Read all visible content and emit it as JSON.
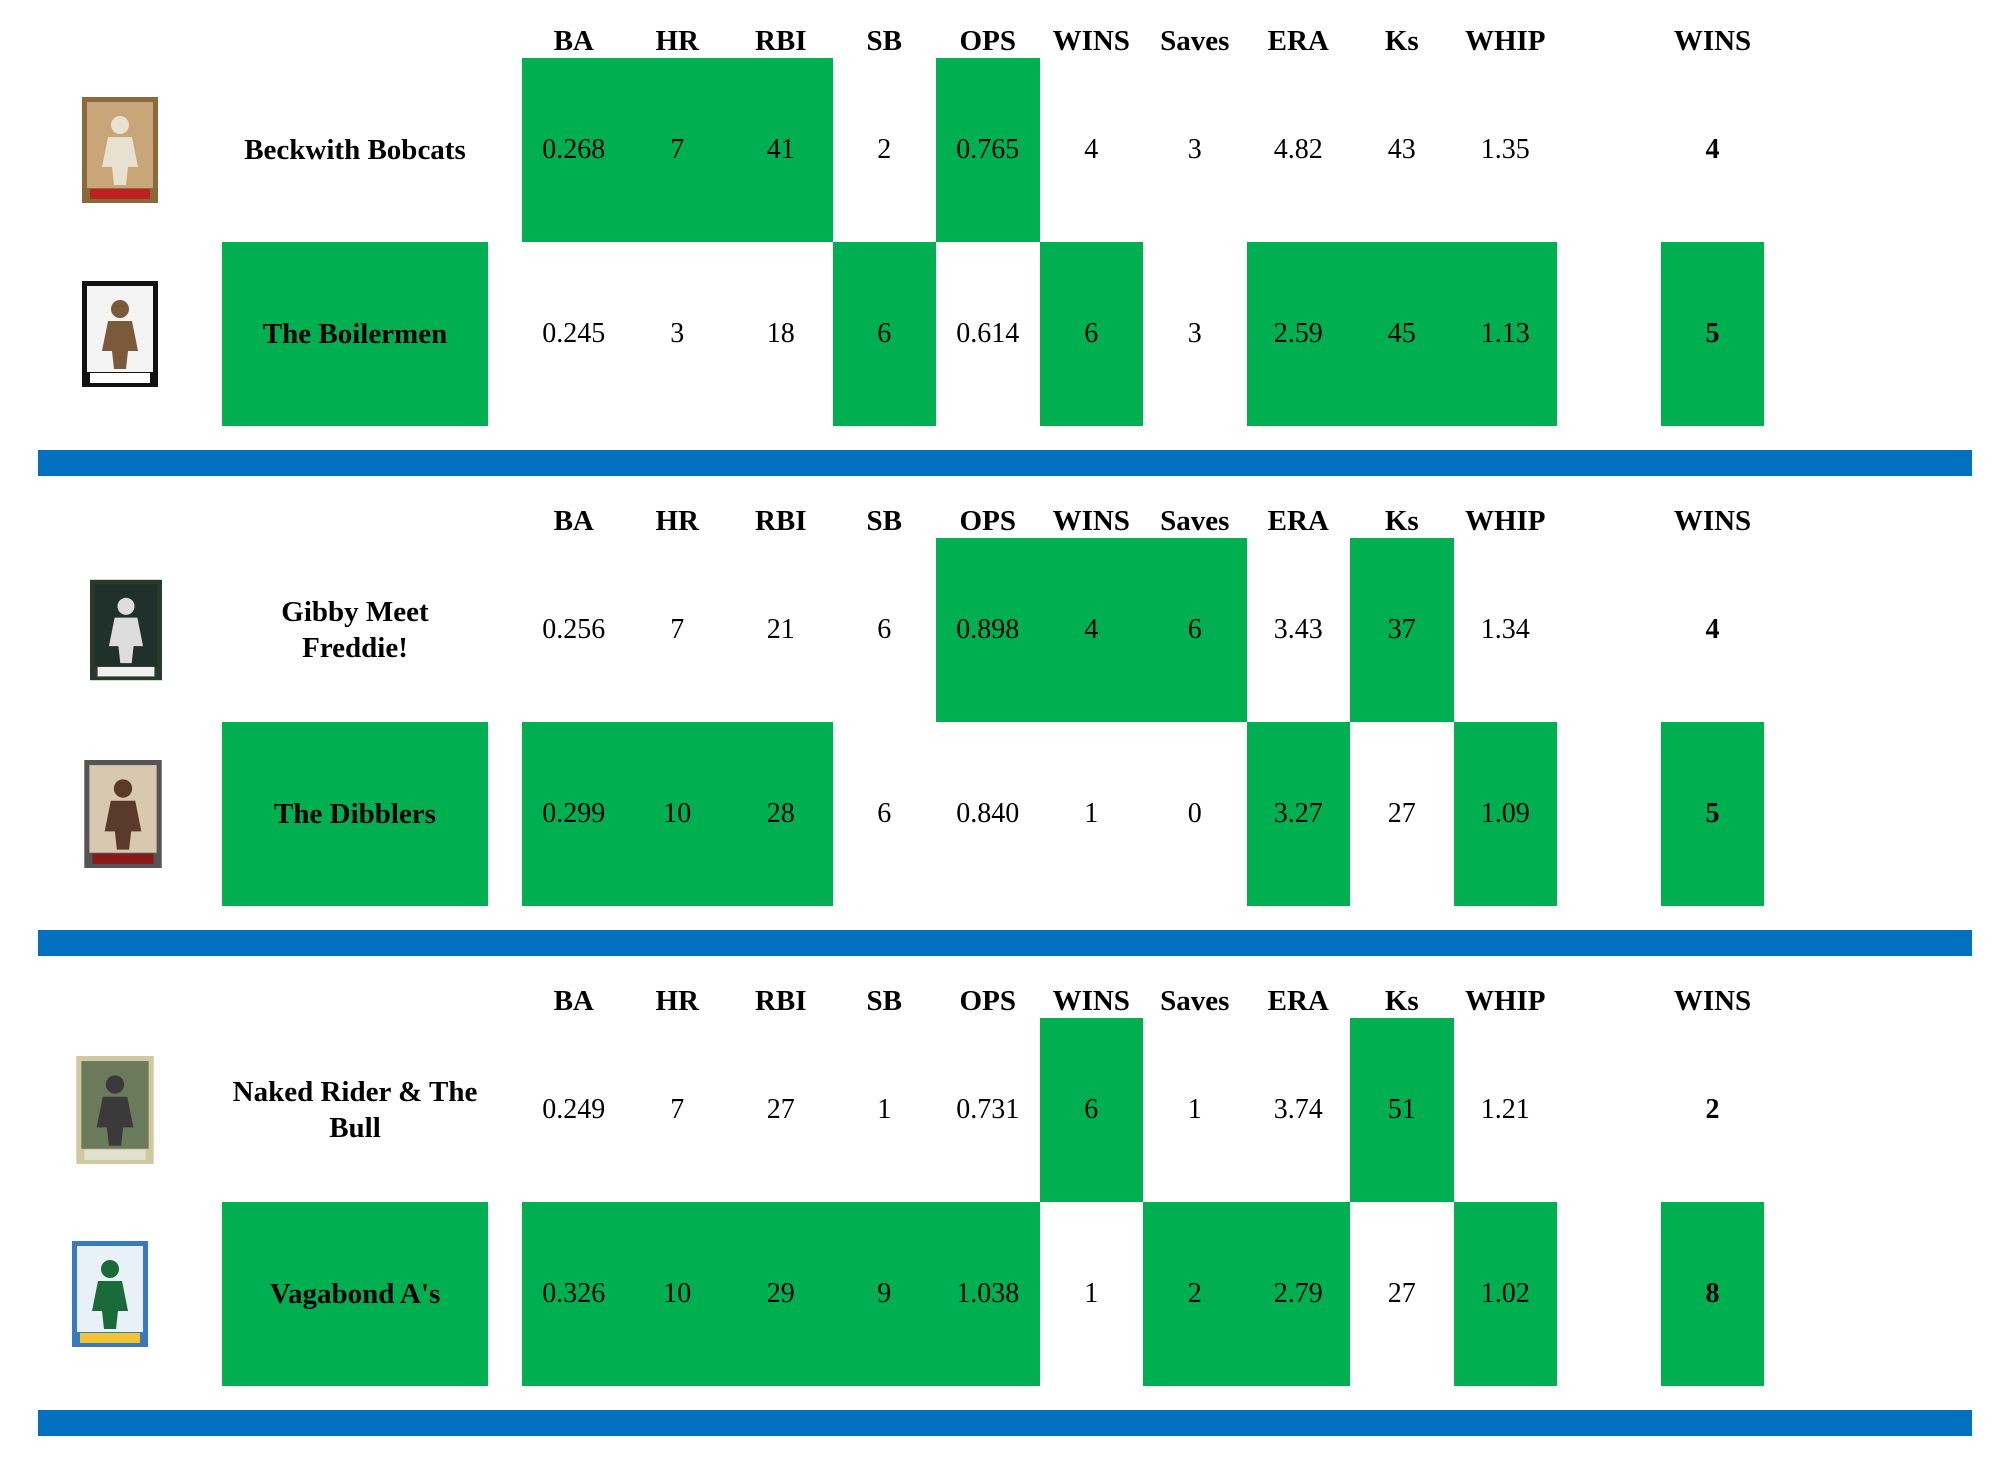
{
  "columns": [
    "BA",
    "HR",
    "RBI",
    "SB",
    "OPS",
    "WINS",
    "Saves",
    "ERA",
    "Ks",
    "WHIP"
  ],
  "total_header": "WINS",
  "colors": {
    "win_highlight": "#00b050",
    "divider": "#0070c0"
  },
  "matchups": [
    {
      "teams": [
        {
          "name": "Beckwith Bobcats",
          "card_icon": "baseball-card-pitcher-icon",
          "stats": [
            "0.268",
            "7",
            "41",
            "2",
            "0.765",
            "4",
            "3",
            "4.82",
            "43",
            "1.35"
          ],
          "highlight": [
            true,
            true,
            true,
            false,
            true,
            false,
            false,
            false,
            false,
            false
          ],
          "total": "4",
          "team_highlight": false,
          "total_highlight": false
        },
        {
          "name": "The Boilermen",
          "card_icon": "baseball-card-portrait-icon",
          "stats": [
            "0.245",
            "3",
            "18",
            "6",
            "0.614",
            "6",
            "3",
            "2.59",
            "45",
            "1.13"
          ],
          "highlight": [
            false,
            false,
            false,
            true,
            false,
            true,
            false,
            true,
            true,
            true
          ],
          "total": "5",
          "team_highlight": true,
          "total_highlight": true
        }
      ]
    },
    {
      "teams": [
        {
          "name": "Gibby Meet Freddie!",
          "card_icon": "baseball-card-runner-icon",
          "stats": [
            "0.256",
            "7",
            "21",
            "6",
            "0.898",
            "4",
            "6",
            "3.43",
            "37",
            "1.34"
          ],
          "highlight": [
            false,
            false,
            false,
            false,
            true,
            true,
            true,
            false,
            true,
            false
          ],
          "total": "4",
          "team_highlight": false,
          "total_highlight": false
        },
        {
          "name": "The Dibblers",
          "card_icon": "baseball-card-batter-icon",
          "stats": [
            "0.299",
            "10",
            "28",
            "6",
            "0.840",
            "1",
            "0",
            "3.27",
            "27",
            "1.09"
          ],
          "highlight": [
            true,
            true,
            true,
            false,
            false,
            false,
            false,
            true,
            false,
            true
          ],
          "total": "5",
          "team_highlight": true,
          "total_highlight": true
        }
      ]
    },
    {
      "teams": [
        {
          "name": "Naked Rider & The Bull",
          "card_icon": "baseball-card-hitter-icon",
          "stats": [
            "0.249",
            "7",
            "27",
            "1",
            "0.731",
            "6",
            "1",
            "3.74",
            "51",
            "1.21"
          ],
          "highlight": [
            false,
            false,
            false,
            false,
            false,
            true,
            false,
            false,
            true,
            false
          ],
          "total": "2",
          "team_highlight": false,
          "total_highlight": false
        },
        {
          "name": "Vagabond A's",
          "card_icon": "baseball-card-athletics-icon",
          "stats": [
            "0.326",
            "10",
            "29",
            "9",
            "1.038",
            "1",
            "2",
            "2.79",
            "27",
            "1.02"
          ],
          "highlight": [
            true,
            true,
            true,
            true,
            true,
            false,
            true,
            true,
            false,
            true
          ],
          "total": "8",
          "team_highlight": true,
          "total_highlight": true
        }
      ]
    }
  ]
}
